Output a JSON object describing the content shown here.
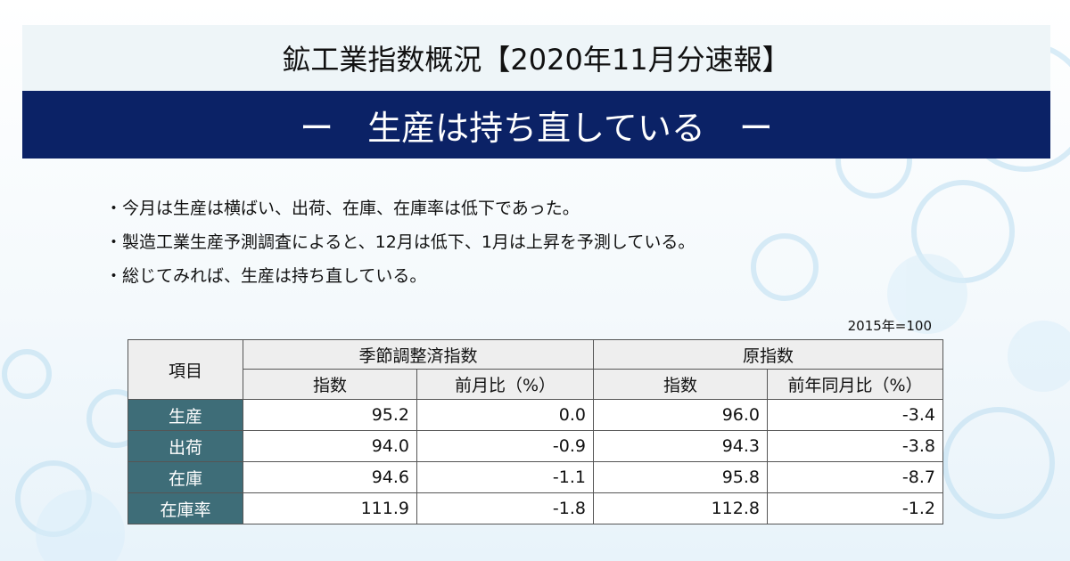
{
  "header": {
    "title": "鉱工業指数概況【2020年11月分速報】",
    "subtitle": "ー　生産は持ち直している　ー"
  },
  "bullets": [
    "・今月は生産は横ばい、出荷、在庫、在庫率は低下であった。",
    "・製造工業生産予測調査によると、12月は低下、1月は上昇を予測している。",
    "・総じてみれば、生産は持ち直している。"
  ],
  "table": {
    "note": "2015年=100",
    "corner": "項目",
    "groups": [
      "季節調整済指数",
      "原指数"
    ],
    "columns": [
      "指数",
      "前月比（%）",
      "指数",
      "前年同月比（%）"
    ],
    "rows": [
      {
        "label": "生産",
        "cells": [
          "95.2",
          "0.0",
          "96.0",
          "-3.4"
        ]
      },
      {
        "label": "出荷",
        "cells": [
          "94.0",
          "-0.9",
          "94.3",
          "-3.8"
        ]
      },
      {
        "label": "在庫",
        "cells": [
          "94.6",
          "-1.1",
          "95.8",
          "-8.7"
        ]
      },
      {
        "label": "在庫率",
        "cells": [
          "111.9",
          "-1.8",
          "112.8",
          "-1.2"
        ]
      }
    ]
  }
}
